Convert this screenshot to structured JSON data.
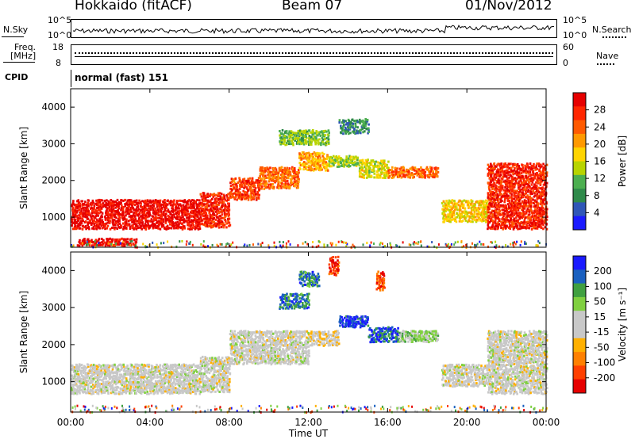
{
  "header": {
    "site": "Hokkaido (fitACF)",
    "beam": "Beam 07",
    "date": "01/Nov/2012"
  },
  "noise_panel": {
    "left_label": "N.Sky",
    "right_label": "N.Search",
    "left_ticks": [
      "10^5",
      "10^0"
    ],
    "right_ticks": [
      "10^5",
      "10^0"
    ]
  },
  "freq_panel": {
    "left_label_1": "Freq.",
    "left_label_2": "[MHz]",
    "right_label": "Nave",
    "left_ticks": [
      "18",
      "8"
    ],
    "right_ticks": [
      "60",
      "0"
    ]
  },
  "cpid": {
    "label": "CPID",
    "value": "normal (fast) 151"
  },
  "chart_data": [
    {
      "type": "heatmap",
      "title": "",
      "xlabel": "Time UT",
      "ylabel": "Slant Range [km]",
      "x_ticks": [
        "00:00",
        "04:00",
        "08:00",
        "12:00",
        "16:00",
        "20:00",
        "00:00"
      ],
      "y_ticks": [
        "1000",
        "2000",
        "3000",
        "4000"
      ],
      "ylim": [
        180,
        4500
      ],
      "colorbar": {
        "label": "Power [dB]",
        "ticks": [
          "28",
          "24",
          "20",
          "16",
          "12",
          "8",
          "4"
        ],
        "range": [
          0,
          32
        ],
        "colors": [
          "#1a1aff",
          "#2f56b7",
          "#2f8a4a",
          "#4caf50",
          "#b8d400",
          "#ffd400",
          "#ff9900",
          "#ff5a00",
          "#ff2600",
          "#e60000"
        ]
      },
      "regions": [
        {
          "t": [
            0,
            6.5
          ],
          "r": [
            700,
            1500
          ],
          "v": 30
        },
        {
          "t": [
            6.5,
            8
          ],
          "r": [
            750,
            1700
          ],
          "v": 28
        },
        {
          "t": [
            8,
            9.5
          ],
          "r": [
            1500,
            2100
          ],
          "v": 26
        },
        {
          "t": [
            9.5,
            11.5
          ],
          "r": [
            1800,
            2400
          ],
          "v": 24
        },
        {
          "t": [
            11.5,
            13.0
          ],
          "r": [
            2300,
            2800
          ],
          "v": 20
        },
        {
          "t": [
            13.0,
            14.5
          ],
          "r": [
            2400,
            2700
          ],
          "v": 14
        },
        {
          "t": [
            14.5,
            16.0
          ],
          "r": [
            2100,
            2600
          ],
          "v": 16
        },
        {
          "t": [
            16.0,
            18.5
          ],
          "r": [
            2100,
            2400
          ],
          "v": 24
        },
        {
          "t": [
            18.7,
            21.0
          ],
          "r": [
            900,
            1500
          ],
          "v": 18
        },
        {
          "t": [
            21.0,
            24.0
          ],
          "r": [
            700,
            2500
          ],
          "v": 28
        },
        {
          "t": [
            10.5,
            13.0
          ],
          "r": [
            3000,
            3400
          ],
          "v": 12
        },
        {
          "t": [
            13.5,
            15.0
          ],
          "r": [
            3300,
            3700
          ],
          "v": 8
        },
        {
          "t": [
            0.3,
            3.3
          ],
          "r": [
            250,
            450
          ],
          "v": 30
        }
      ]
    },
    {
      "type": "heatmap",
      "title": "",
      "xlabel": "Time UT",
      "ylabel": "Slant Range [km]",
      "x_ticks": [
        "00:00",
        "04:00",
        "08:00",
        "12:00",
        "16:00",
        "20:00",
        "00:00"
      ],
      "y_ticks": [
        "1000",
        "2000",
        "3000",
        "4000"
      ],
      "ylim": [
        180,
        4500
      ],
      "colorbar": {
        "label": "Velocity [m s⁻¹]",
        "ticks": [
          "200",
          "100",
          "50",
          "15",
          "-15",
          "-50",
          "-100",
          "-200"
        ],
        "range": [
          -250,
          250
        ],
        "colors": [
          "#e60000",
          "#ff4000",
          "#ff8000",
          "#ffb000",
          "#c8c8c8",
          "#c8c8c8",
          "#80d040",
          "#40a040",
          "#1a60c0",
          "#1a1aff"
        ]
      },
      "regions": [
        {
          "t": [
            0,
            6.5
          ],
          "r": [
            700,
            1500
          ],
          "v": 0
        },
        {
          "t": [
            6.5,
            8
          ],
          "r": [
            750,
            1700
          ],
          "v": 0
        },
        {
          "t": [
            8,
            12
          ],
          "r": [
            1500,
            2400
          ],
          "v": 0
        },
        {
          "t": [
            12,
            13.5
          ],
          "r": [
            2000,
            2400
          ],
          "v": -30
        },
        {
          "t": [
            13.5,
            15
          ],
          "r": [
            2500,
            2800
          ],
          "v": 200
        },
        {
          "t": [
            15,
            16.5
          ],
          "r": [
            2100,
            2500
          ],
          "v": 180
        },
        {
          "t": [
            16.5,
            18.5
          ],
          "r": [
            2100,
            2400
          ],
          "v": 60
        },
        {
          "t": [
            18.7,
            21
          ],
          "r": [
            900,
            1500
          ],
          "v": 0
        },
        {
          "t": [
            21,
            24
          ],
          "r": [
            700,
            2400
          ],
          "v": 0
        },
        {
          "t": [
            13,
            13.5
          ],
          "r": [
            3900,
            4400
          ],
          "v": -200
        },
        {
          "t": [
            15.4,
            15.8
          ],
          "r": [
            3500,
            4000
          ],
          "v": -180
        },
        {
          "t": [
            11.5,
            12.5
          ],
          "r": [
            3600,
            4000
          ],
          "v": 150
        },
        {
          "t": [
            10.5,
            12
          ],
          "r": [
            3000,
            3400
          ],
          "v": 150
        }
      ]
    }
  ]
}
